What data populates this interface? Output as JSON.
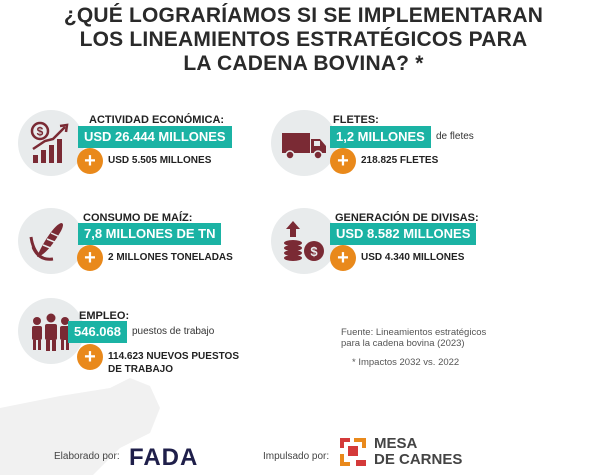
{
  "title": {
    "line1": "¿QUÉ LOGRARÍAMOS SI SE IMPLEMENTARAN",
    "line2": "LOS LINEAMIENTOS ESTRATÉGICOS PARA",
    "line3": "LA CADENA BOVINA? *"
  },
  "cards": [
    {
      "label": "ACTIVIDAD ECONÓMICA:",
      "highlight": "USD 26.444 MILLONES",
      "after": "",
      "sub": [
        "USD 5.505 MILLONES"
      ],
      "icon": "economic-growth-icon"
    },
    {
      "label": "FLETES:",
      "highlight": "1,2 MILLONES",
      "after": "de fletes",
      "sub": [
        "218.825 FLETES"
      ],
      "icon": "truck-icon"
    },
    {
      "label": "CONSUMO DE MAÍZ:",
      "highlight": "7,8 MILLONES DE TN",
      "after": "",
      "sub": [
        "2 MILLONES TONELADAS"
      ],
      "icon": "corn-icon"
    },
    {
      "label": "GENERACIÓN DE DIVISAS:",
      "highlight": "USD 8.582 MILLONES",
      "after": "",
      "sub": [
        "USD 4.340 MILLONES"
      ],
      "icon": "coins-icon"
    },
    {
      "label": "EMPLEO:",
      "highlight": "546.068",
      "after": "puestos de trabajo",
      "sub": [
        "114.623 NUEVOS PUESTOS",
        "DE TRABAJO"
      ],
      "icon": "people-icon"
    }
  ],
  "source": {
    "line1": "Fuente: Lineamientos estratégicos",
    "line2": "para la cadena bovina (2023)",
    "impact": "* Impactos 2032 vs. 2022"
  },
  "footer": {
    "elaborado": "Elaborado por:",
    "fada": "FADA",
    "impulsado": "Impulsado por:",
    "mesa_line1": "MESA",
    "mesa_line2": "DE CARNES"
  },
  "colors": {
    "teal": "#1bb3a4",
    "orange": "#e9891b",
    "maroon": "#7a2a34",
    "circle": "#e8ebec"
  }
}
